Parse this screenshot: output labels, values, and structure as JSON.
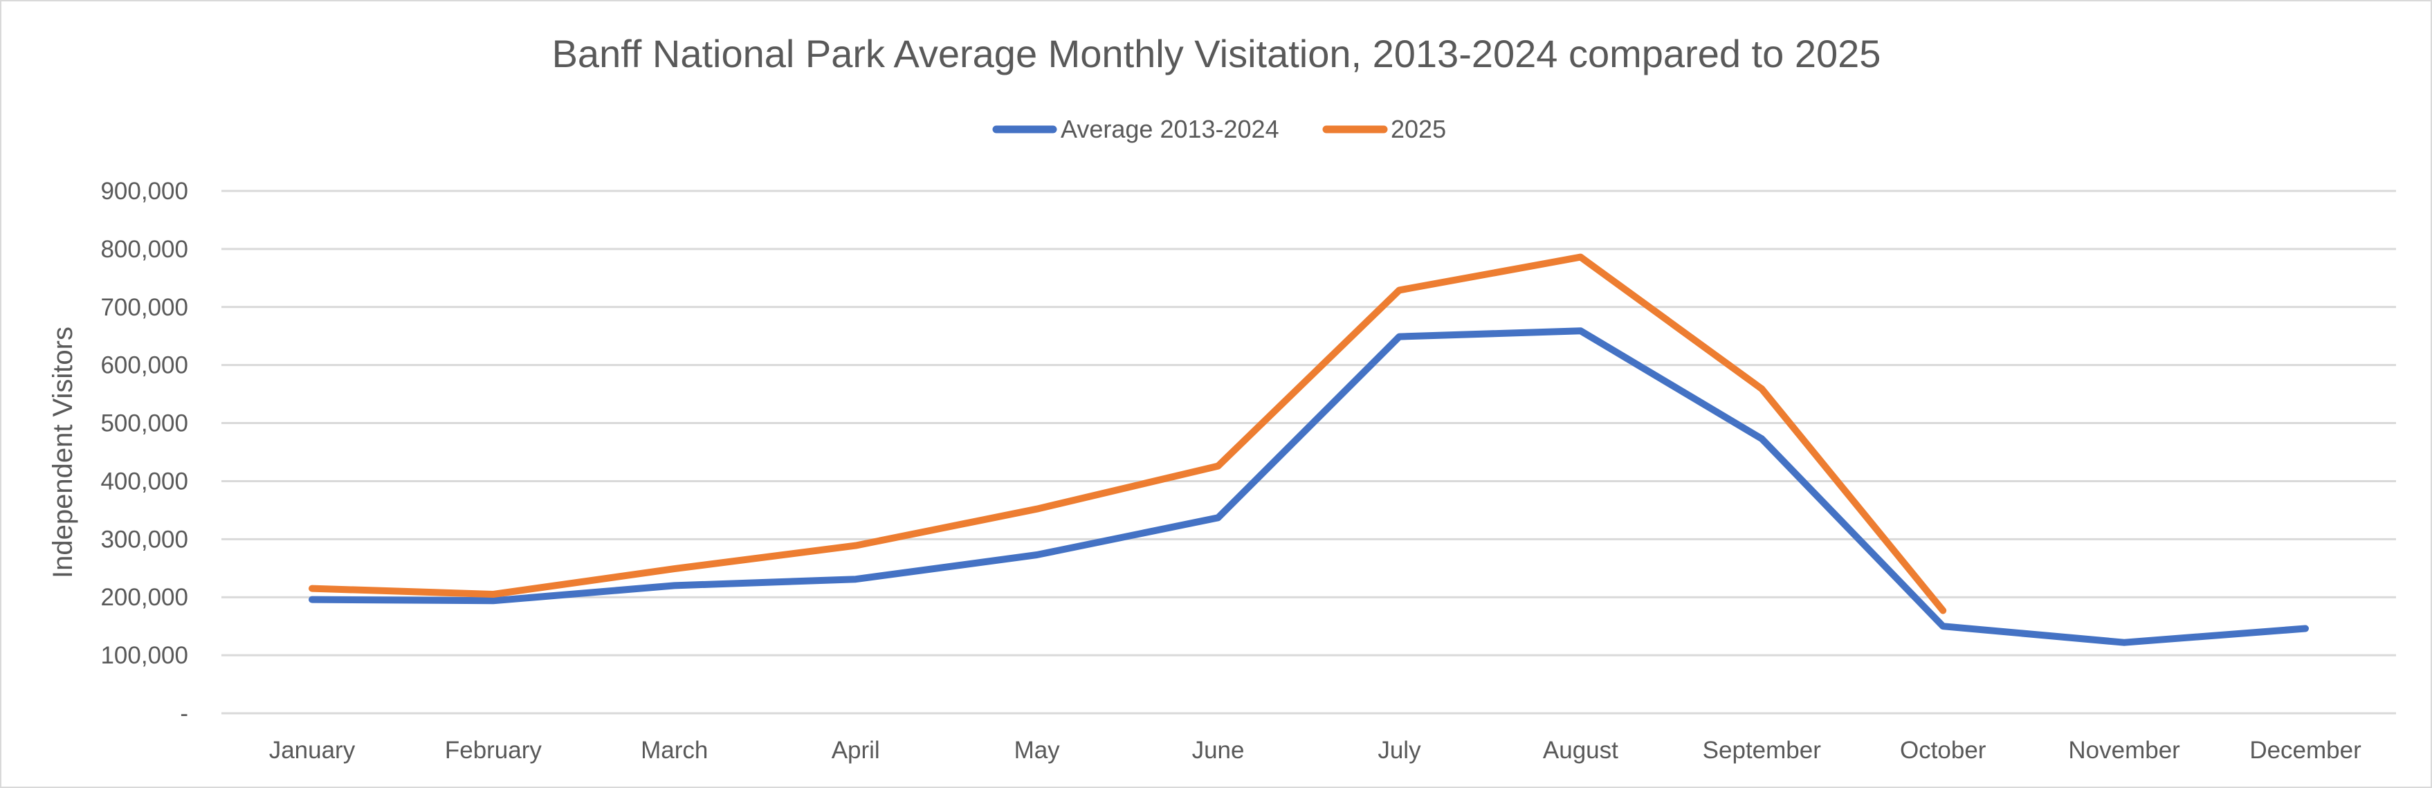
{
  "chart_data": {
    "type": "line",
    "title": "Banff National Park Average Monthly Visitation, 2013-2024 compared to 2025",
    "xlabel": "",
    "ylabel": "Independent Visitors",
    "ylim": [
      0,
      900000
    ],
    "yticks": [
      0,
      100000,
      200000,
      300000,
      400000,
      500000,
      600000,
      700000,
      800000,
      900000
    ],
    "ytick_labels": [
      "-",
      "100,000",
      "200,000",
      "300,000",
      "400,000",
      "500,000",
      "600,000",
      "700,000",
      "800,000",
      "900,000"
    ],
    "grid": true,
    "legend_position": "top",
    "categories": [
      "January",
      "February",
      "March",
      "April",
      "May",
      "June",
      "July",
      "August",
      "September",
      "October",
      "November",
      "December"
    ],
    "series": [
      {
        "name": "Average 2013-2024",
        "color": "#4472c4",
        "values": [
          196000,
          194000,
          220000,
          231000,
          273000,
          337000,
          649000,
          659000,
          473000,
          150000,
          122000,
          146000
        ]
      },
      {
        "name": "2025",
        "color": "#ed7d31",
        "values": [
          215000,
          205000,
          249000,
          289000,
          352000,
          426000,
          729000,
          786000,
          559000,
          177000,
          null,
          null
        ]
      }
    ]
  }
}
